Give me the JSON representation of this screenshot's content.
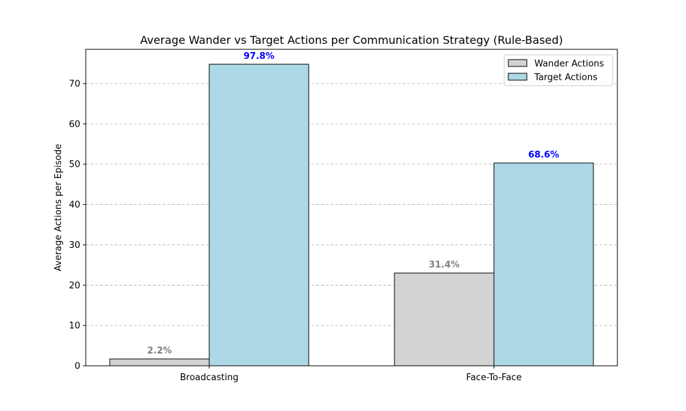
{
  "chart_data": {
    "type": "bar",
    "title": "Average Wander vs Target Actions per Communication Strategy (Rule-Based)",
    "xlabel": "",
    "ylabel": "Average Actions per Episode",
    "categories": [
      "Broadcasting",
      "Face-To-Face"
    ],
    "ylim": [
      0,
      78.5
    ],
    "yticks": [
      0,
      10,
      20,
      30,
      40,
      50,
      60,
      70
    ],
    "grid": "y-dashed",
    "legend": {
      "placement": "top-right"
    },
    "series": [
      {
        "name": "Wander Actions",
        "values": [
          1.7,
          23.0
        ],
        "labels": [
          "2.2%",
          "31.4%"
        ],
        "color": "#d3d3d3",
        "label_color": "#808080"
      },
      {
        "name": "Target Actions",
        "values": [
          74.8,
          50.3
        ],
        "labels": [
          "97.8%",
          "68.6%"
        ],
        "color": "#add8e6",
        "label_color": "#0000ff"
      }
    ]
  }
}
